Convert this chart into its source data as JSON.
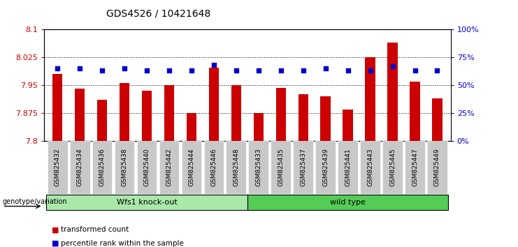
{
  "title": "GDS4526 / 10421648",
  "categories": [
    "GSM825432",
    "GSM825434",
    "GSM825436",
    "GSM825438",
    "GSM825440",
    "GSM825442",
    "GSM825444",
    "GSM825446",
    "GSM825448",
    "GSM825433",
    "GSM825435",
    "GSM825437",
    "GSM825439",
    "GSM825441",
    "GSM825443",
    "GSM825445",
    "GSM825447",
    "GSM825449"
  ],
  "group_labels": [
    "Wfs1 knock-out",
    "wild type"
  ],
  "group_sizes": [
    9,
    9
  ],
  "bar_values": [
    7.98,
    7.94,
    7.91,
    7.955,
    7.935,
    7.95,
    7.875,
    7.997,
    7.95,
    7.875,
    7.943,
    7.925,
    7.92,
    7.885,
    8.025,
    8.065,
    7.96,
    7.915
  ],
  "percentile_values": [
    65,
    65,
    63,
    65,
    63,
    63,
    63,
    68,
    63,
    63,
    63,
    63,
    65,
    63,
    63,
    67,
    63,
    63
  ],
  "ylim_left": [
    7.8,
    8.1
  ],
  "yticks_left": [
    7.8,
    7.875,
    7.95,
    8.025,
    8.1
  ],
  "ylim_right": [
    0,
    100
  ],
  "yticks_right": [
    0,
    25,
    50,
    75,
    100
  ],
  "bar_color": "#cc0000",
  "dot_color": "#0000cc",
  "bar_width": 0.45,
  "background_color": "#ffffff",
  "grid_color": "#000000",
  "ylabel_left_color": "#cc0000",
  "ylabel_right_color": "#0000cc",
  "tick_label_bg": "#c8c8c8",
  "group1_bg": "#aae8aa",
  "group2_bg": "#55cc55",
  "genotype_label": "genotype/variation",
  "legend_items": [
    "transformed count",
    "percentile rank within the sample"
  ]
}
